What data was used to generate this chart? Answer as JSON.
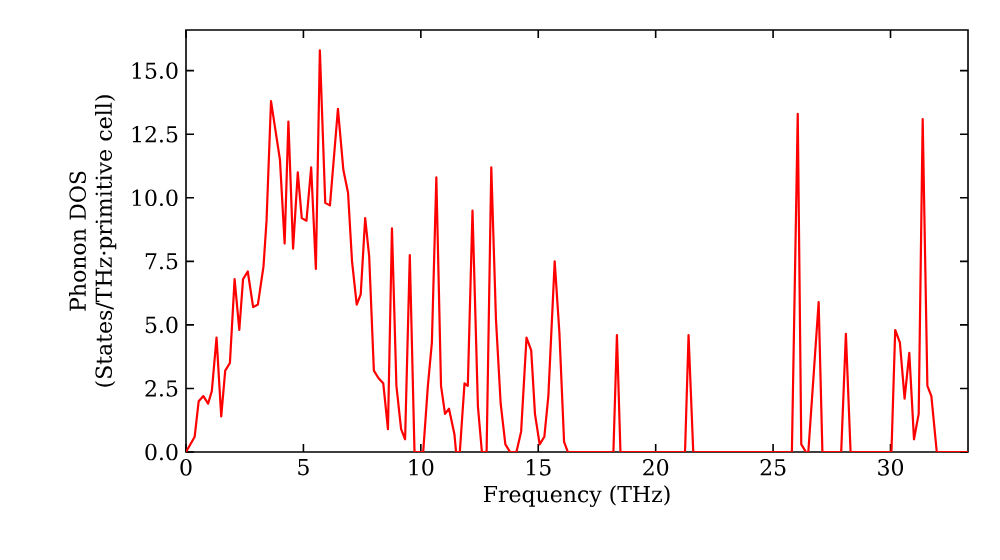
{
  "chart_data": {
    "type": "line",
    "xlabel": "Frequency (THz)",
    "ylabel": "Phonon DOS (States/THz·primitive cell)",
    "x": [
      0,
      0.37,
      0.54,
      0.74,
      0.94,
      1.1,
      1.3,
      1.5,
      1.67,
      1.87,
      2.07,
      2.27,
      2.43,
      2.63,
      2.86,
      3.06,
      3.3,
      3.43,
      3.62,
      4.0,
      4.2,
      4.36,
      4.56,
      4.76,
      4.93,
      5.13,
      5.33,
      5.53,
      5.7,
      5.93,
      6.13,
      6.47,
      6.7,
      6.9,
      7.07,
      7.27,
      7.44,
      7.63,
      7.8,
      8.0,
      8.2,
      8.4,
      8.6,
      8.77,
      8.96,
      9.16,
      9.33,
      9.53,
      9.73,
      10.1,
      10.3,
      10.47,
      10.66,
      10.86,
      11.03,
      11.2,
      11.43,
      11.5,
      11.66,
      11.86,
      12.0,
      12.2,
      12.43,
      12.6,
      12.8,
      13.0,
      13.2,
      13.4,
      13.6,
      13.8,
      14.07,
      14.27,
      14.5,
      14.7,
      14.86,
      15.06,
      15.26,
      15.43,
      15.7,
      15.9,
      16.1,
      16.26,
      18.2,
      18.35,
      18.5,
      21.25,
      21.4,
      21.6,
      25.8,
      26.05,
      26.2,
      26.4,
      26.5,
      26.94,
      27.1,
      27.9,
      28.1,
      28.3,
      30.04,
      30.2,
      30.4,
      30.6,
      30.8,
      31.0,
      31.2,
      31.37,
      31.57,
      31.74,
      31.97,
      33.3
    ],
    "series": [
      {
        "color": "#ff0000",
        "values": [
          0,
          0.6,
          2.0,
          2.2,
          1.9,
          2.4,
          4.5,
          1.4,
          3.2,
          3.5,
          6.8,
          4.8,
          6.8,
          7.1,
          5.7,
          5.8,
          7.3,
          9.1,
          13.8,
          11.5,
          8.2,
          13.0,
          8.0,
          11.0,
          9.2,
          9.1,
          11.2,
          7.2,
          15.8,
          9.8,
          9.7,
          13.5,
          11.1,
          10.2,
          7.5,
          5.8,
          6.2,
          9.2,
          7.7,
          3.2,
          2.9,
          2.7,
          0.9,
          8.8,
          2.6,
          0.9,
          0.5,
          7.75,
          0,
          0,
          2.6,
          4.3,
          10.8,
          2.6,
          1.5,
          1.7,
          0.7,
          0,
          0,
          2.7,
          2.6,
          9.5,
          1.8,
          0,
          0,
          11.2,
          5.2,
          1.9,
          0.3,
          0,
          0,
          0.8,
          4.5,
          4.0,
          1.5,
          0.3,
          0.6,
          2.2,
          7.5,
          4.7,
          0.4,
          0,
          0,
          4.6,
          0,
          0,
          4.6,
          0,
          0,
          13.3,
          0.3,
          0,
          0,
          5.9,
          0,
          0,
          4.65,
          0,
          0,
          4.8,
          4.3,
          2.1,
          3.9,
          0.5,
          1.5,
          13.1,
          2.6,
          2.2,
          0,
          0
        ]
      }
    ],
    "xlim": [
      0,
      33.3
    ],
    "ylim": [
      0,
      16.6
    ],
    "xticks": [
      0,
      5,
      10,
      15,
      20,
      25,
      30
    ],
    "yticks": [
      {
        "value": 0,
        "label": "0.0"
      },
      {
        "value": 2.5,
        "label": "2.5"
      },
      {
        "value": 5,
        "label": "5.0"
      },
      {
        "value": 7.5,
        "label": "7.5"
      },
      {
        "value": 10,
        "label": "10.0"
      },
      {
        "value": 12.5,
        "label": "12.5"
      },
      {
        "value": 15,
        "label": "15.0"
      }
    ],
    "grid": false,
    "marker": "none",
    "line_style": "solid"
  }
}
